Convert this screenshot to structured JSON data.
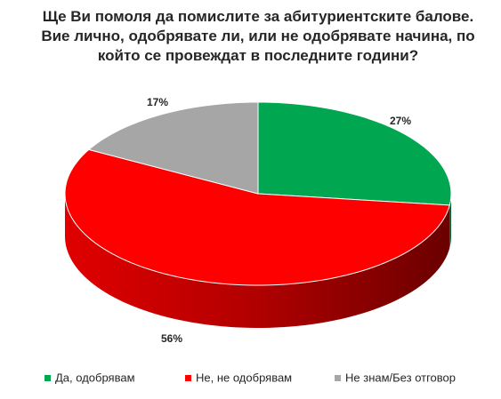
{
  "chart_data": {
    "type": "pie3d",
    "title": "Ще Ви помоля да помислите за абитуриентските балове. Вие лично, одобрявате ли, или не одобрявате начина, по който се провеждат в последните години?",
    "categories": [
      "Да, одобрявам",
      "Не, не одобрявам",
      "Не знам/Без отговор"
    ],
    "values": [
      27,
      56,
      17
    ],
    "value_labels": [
      "27%",
      "56%",
      "17%"
    ],
    "colors": [
      "#00a650",
      "#ff0000",
      "#a6a6a6"
    ],
    "legend": "bottom"
  }
}
